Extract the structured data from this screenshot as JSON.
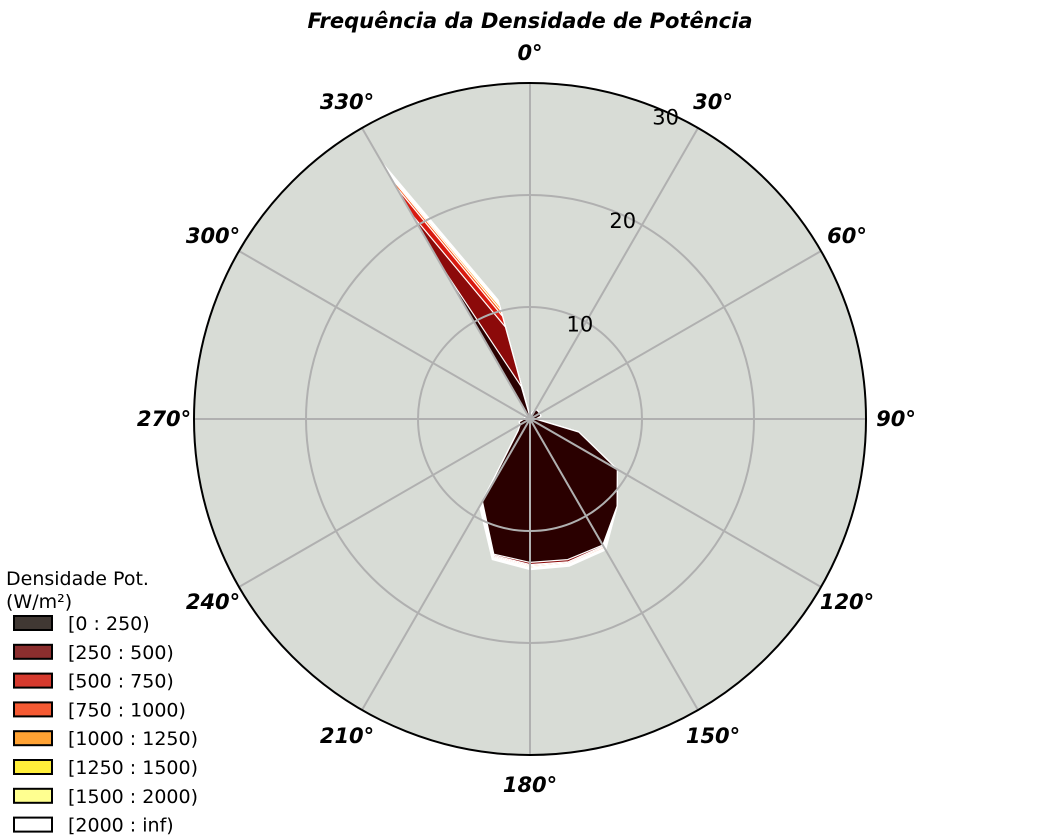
{
  "chart_data": {
    "type": "windrose",
    "title": "Frequência da Densidade de Potência",
    "theta_direction": "clockwise",
    "theta_zero": "N",
    "angle_labels": [
      "0°",
      "30°",
      "60°",
      "90°",
      "120°",
      "150°",
      "180°",
      "210°",
      "240°",
      "270°",
      "300°",
      "330°"
    ],
    "radial_ticks": [
      10,
      20,
      30
    ],
    "rlim": [
      0,
      30
    ],
    "grid": true,
    "directions_deg": [
      0,
      15,
      30,
      45,
      60,
      75,
      90,
      105,
      120,
      135,
      150,
      165,
      180,
      195,
      210,
      225,
      240,
      255,
      270,
      285,
      300,
      315,
      330,
      345
    ],
    "legend": {
      "title_line1": "Densidade Pot.",
      "title_line2": "(W/m²)",
      "placement": "lower-left"
    },
    "bins": [
      {
        "label": "[0 : 250)",
        "color": "#2a0000",
        "legend_color": "#403833",
        "values": [
          0.2,
          0.5,
          1,
          1,
          1,
          1,
          0.5,
          4.5,
          9,
          11,
          13,
          13,
          12.8,
          12.5,
          8.5,
          1.5,
          1,
          1,
          0.5,
          0.5,
          0,
          0,
          15.5,
          3
        ]
      },
      {
        "label": "[250 : 500)",
        "color": "#8c0a0a",
        "legend_color": "#8b2e2e",
        "values": [
          0.2,
          0.5,
          1,
          1,
          1,
          1,
          0.5,
          4.5,
          9,
          11,
          13.1,
          13.2,
          13,
          12.6,
          8.6,
          1.5,
          1,
          1,
          0.5,
          0.5,
          0,
          0,
          21,
          8.5
        ]
      },
      {
        "label": "[500 : 750)",
        "color": "#d81a10",
        "legend_color": "#d63a2e",
        "values": [
          0.2,
          0.5,
          1,
          1,
          1,
          1,
          0.5,
          4.5,
          9,
          11,
          13.2,
          13.3,
          13.1,
          12.7,
          8.7,
          1.5,
          1,
          1,
          0.5,
          0.5,
          0,
          0,
          24,
          9.5
        ]
      },
      {
        "label": "[750 : 1000)",
        "color": "#ff5a14",
        "legend_color": "#f55a33",
        "values": [
          0.2,
          0.5,
          1,
          1,
          1,
          1,
          0.5,
          4.5,
          9,
          11,
          13.3,
          13.4,
          13.2,
          12.8,
          8.8,
          1.5,
          1,
          1,
          0.5,
          0.5,
          0,
          0,
          25,
          10
        ]
      },
      {
        "label": "[1000 : 1250)",
        "color": "#ff9c20",
        "legend_color": "#ffa233",
        "values": [
          0.2,
          0.5,
          1,
          1,
          1,
          1,
          0.5,
          4.5,
          9,
          11,
          13.35,
          13.45,
          13.3,
          12.85,
          8.85,
          1.5,
          1,
          1,
          0.5,
          0.5,
          0,
          0,
          25.5,
          10.4
        ]
      },
      {
        "label": "[1250 : 1500)",
        "color": "#ffe640",
        "legend_color": "#ffee3a",
        "values": [
          0.2,
          0.5,
          1,
          1,
          1,
          1,
          0.5,
          4.5,
          9,
          11,
          13.4,
          13.5,
          13.35,
          12.9,
          8.9,
          1.5,
          1,
          1,
          0.5,
          0.5,
          0,
          0,
          25.8,
          10.6
        ]
      },
      {
        "label": "[1500 : 2000)",
        "color": "#fff8a8",
        "legend_color": "#ffff90",
        "values": [
          0.2,
          0.5,
          1,
          1,
          1,
          1,
          0.5,
          4.5,
          9,
          11,
          13.45,
          13.55,
          13.4,
          12.95,
          8.95,
          1.5,
          1,
          1,
          0.5,
          0.5,
          0,
          0,
          26.2,
          10.8
        ]
      },
      {
        "label": "[2000 : inf)",
        "color": "#fffdf2",
        "legend_color": "#ffffff",
        "values": [
          0.2,
          0.5,
          1,
          1,
          1,
          1,
          0.5,
          4.5,
          9,
          11,
          13.5,
          13.6,
          13.45,
          13,
          9,
          1.5,
          1,
          1,
          0.5,
          0.5,
          0,
          0,
          26.5,
          11
        ]
      }
    ],
    "colors": {
      "background": "#d8dcd6",
      "grid": "#b0b0b0",
      "frame": "#000000",
      "text": "#000000"
    }
  }
}
